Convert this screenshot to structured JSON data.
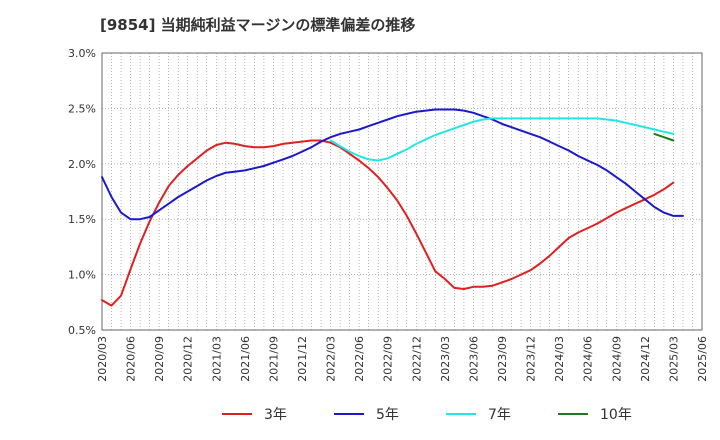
{
  "chart_data": {
    "type": "line",
    "title": "[9854]  当期純利益マージンの標準偏差の推移",
    "xlabel": "",
    "ylabel": "",
    "ylim": [
      0.5,
      3.0
    ],
    "y_tick_labels": [
      "0.5%",
      "1.0%",
      "1.5%",
      "2.0%",
      "2.5%",
      "3.0%"
    ],
    "x_tick_labels": [
      "2020/03",
      "2020/06",
      "2020/09",
      "2020/12",
      "2021/03",
      "2021/06",
      "2021/09",
      "2021/12",
      "2022/03",
      "2022/06",
      "2022/09",
      "2022/12",
      "2023/03",
      "2023/06",
      "2023/09",
      "2023/12",
      "2024/03",
      "2024/06",
      "2024/09",
      "2024/12",
      "2025/03",
      "2025/06"
    ],
    "grid": true,
    "legend_position": "bottom",
    "series": [
      {
        "name": "3年",
        "color": "#e02020",
        "points": [
          [
            "2020/03",
            0.77
          ],
          [
            "2020/04",
            0.72
          ],
          [
            "2020/05",
            0.81
          ],
          [
            "2020/06",
            1.05
          ],
          [
            "2020/07",
            1.28
          ],
          [
            "2020/08",
            1.48
          ],
          [
            "2020/09",
            1.65
          ],
          [
            "2020/10",
            1.8
          ],
          [
            "2020/11",
            1.9
          ],
          [
            "2020/12",
            1.98
          ],
          [
            "2021/01",
            2.05
          ],
          [
            "2021/02",
            2.12
          ],
          [
            "2021/03",
            2.17
          ],
          [
            "2021/04",
            2.19
          ],
          [
            "2021/05",
            2.18
          ],
          [
            "2021/06",
            2.16
          ],
          [
            "2021/07",
            2.15
          ],
          [
            "2021/08",
            2.15
          ],
          [
            "2021/09",
            2.16
          ],
          [
            "2021/10",
            2.18
          ],
          [
            "2021/11",
            2.19
          ],
          [
            "2021/12",
            2.2
          ],
          [
            "2022/01",
            2.21
          ],
          [
            "2022/02",
            2.21
          ],
          [
            "2022/03",
            2.19
          ],
          [
            "2022/04",
            2.15
          ],
          [
            "2022/05",
            2.09
          ],
          [
            "2022/06",
            2.03
          ],
          [
            "2022/07",
            1.96
          ],
          [
            "2022/08",
            1.88
          ],
          [
            "2022/09",
            1.78
          ],
          [
            "2022/10",
            1.67
          ],
          [
            "2022/11",
            1.53
          ],
          [
            "2022/12",
            1.37
          ],
          [
            "2023/01",
            1.2
          ],
          [
            "2023/02",
            1.03
          ],
          [
            "2023/03",
            0.96
          ],
          [
            "2023/04",
            0.88
          ],
          [
            "2023/05",
            0.87
          ],
          [
            "2023/06",
            0.89
          ],
          [
            "2023/07",
            0.89
          ],
          [
            "2023/08",
            0.9
          ],
          [
            "2023/09",
            0.93
          ],
          [
            "2023/10",
            0.96
          ],
          [
            "2023/11",
            1.0
          ],
          [
            "2023/12",
            1.04
          ],
          [
            "2024/01",
            1.1
          ],
          [
            "2024/02",
            1.17
          ],
          [
            "2024/03",
            1.25
          ],
          [
            "2024/04",
            1.33
          ],
          [
            "2024/05",
            1.38
          ],
          [
            "2024/06",
            1.42
          ],
          [
            "2024/07",
            1.46
          ],
          [
            "2024/08",
            1.51
          ],
          [
            "2024/09",
            1.56
          ],
          [
            "2024/10",
            1.6
          ],
          [
            "2024/11",
            1.64
          ],
          [
            "2024/12",
            1.68
          ],
          [
            "2025/01",
            1.72
          ],
          [
            "2025/02",
            1.77
          ],
          [
            "2025/03",
            1.83
          ]
        ]
      },
      {
        "name": "5年",
        "color": "#1a1acc",
        "points": [
          [
            "2020/03",
            1.88
          ],
          [
            "2020/04",
            1.7
          ],
          [
            "2020/05",
            1.56
          ],
          [
            "2020/06",
            1.5
          ],
          [
            "2020/07",
            1.5
          ],
          [
            "2020/08",
            1.52
          ],
          [
            "2020/09",
            1.58
          ],
          [
            "2020/10",
            1.64
          ],
          [
            "2020/11",
            1.7
          ],
          [
            "2020/12",
            1.75
          ],
          [
            "2021/01",
            1.8
          ],
          [
            "2021/02",
            1.85
          ],
          [
            "2021/03",
            1.89
          ],
          [
            "2021/04",
            1.92
          ],
          [
            "2021/05",
            1.93
          ],
          [
            "2021/06",
            1.94
          ],
          [
            "2021/07",
            1.96
          ],
          [
            "2021/08",
            1.98
          ],
          [
            "2021/09",
            2.01
          ],
          [
            "2021/10",
            2.04
          ],
          [
            "2021/11",
            2.07
          ],
          [
            "2021/12",
            2.11
          ],
          [
            "2022/01",
            2.15
          ],
          [
            "2022/02",
            2.2
          ],
          [
            "2022/03",
            2.24
          ],
          [
            "2022/04",
            2.27
          ],
          [
            "2022/05",
            2.29
          ],
          [
            "2022/06",
            2.31
          ],
          [
            "2022/07",
            2.34
          ],
          [
            "2022/08",
            2.37
          ],
          [
            "2022/09",
            2.4
          ],
          [
            "2022/10",
            2.43
          ],
          [
            "2022/11",
            2.45
          ],
          [
            "2022/12",
            2.47
          ],
          [
            "2023/01",
            2.48
          ],
          [
            "2023/02",
            2.49
          ],
          [
            "2023/03",
            2.49
          ],
          [
            "2023/04",
            2.49
          ],
          [
            "2023/05",
            2.48
          ],
          [
            "2023/06",
            2.46
          ],
          [
            "2023/07",
            2.43
          ],
          [
            "2023/08",
            2.4
          ],
          [
            "2023/09",
            2.36
          ],
          [
            "2023/10",
            2.33
          ],
          [
            "2023/11",
            2.3
          ],
          [
            "2023/12",
            2.27
          ],
          [
            "2024/01",
            2.24
          ],
          [
            "2024/02",
            2.2
          ],
          [
            "2024/03",
            2.16
          ],
          [
            "2024/04",
            2.12
          ],
          [
            "2024/05",
            2.07
          ],
          [
            "2024/06",
            2.03
          ],
          [
            "2024/07",
            1.99
          ],
          [
            "2024/08",
            1.94
          ],
          [
            "2024/09",
            1.88
          ],
          [
            "2024/10",
            1.82
          ],
          [
            "2024/11",
            1.75
          ],
          [
            "2024/12",
            1.68
          ],
          [
            "2025/01",
            1.61
          ],
          [
            "2025/02",
            1.56
          ],
          [
            "2025/03",
            1.53
          ],
          [
            "2025/04",
            1.53
          ]
        ]
      },
      {
        "name": "7年",
        "color": "#22e6e6",
        "points": [
          [
            "2022/03",
            2.21
          ],
          [
            "2022/04",
            2.16
          ],
          [
            "2022/05",
            2.11
          ],
          [
            "2022/06",
            2.07
          ],
          [
            "2022/07",
            2.04
          ],
          [
            "2022/08",
            2.03
          ],
          [
            "2022/09",
            2.05
          ],
          [
            "2022/10",
            2.09
          ],
          [
            "2022/11",
            2.13
          ],
          [
            "2022/12",
            2.18
          ],
          [
            "2023/01",
            2.22
          ],
          [
            "2023/02",
            2.26
          ],
          [
            "2023/03",
            2.29
          ],
          [
            "2023/04",
            2.32
          ],
          [
            "2023/05",
            2.35
          ],
          [
            "2023/06",
            2.38
          ],
          [
            "2023/07",
            2.4
          ],
          [
            "2023/08",
            2.41
          ],
          [
            "2023/09",
            2.41
          ],
          [
            "2023/10",
            2.41
          ],
          [
            "2023/11",
            2.41
          ],
          [
            "2023/12",
            2.41
          ],
          [
            "2024/01",
            2.41
          ],
          [
            "2024/02",
            2.41
          ],
          [
            "2024/03",
            2.41
          ],
          [
            "2024/04",
            2.41
          ],
          [
            "2024/05",
            2.41
          ],
          [
            "2024/06",
            2.41
          ],
          [
            "2024/07",
            2.41
          ],
          [
            "2024/08",
            2.4
          ],
          [
            "2024/09",
            2.39
          ],
          [
            "2024/10",
            2.37
          ],
          [
            "2024/11",
            2.35
          ],
          [
            "2024/12",
            2.33
          ],
          [
            "2025/01",
            2.31
          ],
          [
            "2025/02",
            2.29
          ],
          [
            "2025/03",
            2.27
          ]
        ]
      },
      {
        "name": "10年",
        "color": "#1e7a1e",
        "points": [
          [
            "2025/01",
            2.27
          ],
          [
            "2025/02",
            2.24
          ],
          [
            "2025/03",
            2.21
          ]
        ]
      }
    ]
  }
}
